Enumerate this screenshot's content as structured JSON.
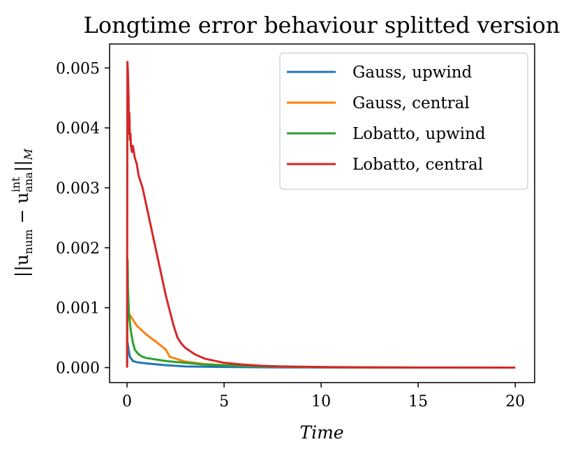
{
  "chart_data": {
    "type": "line",
    "title": "Longtime error behaviour splitted version",
    "xlabel": "Time",
    "ylabel_parts": {
      "bars_open": "||u",
      "num_sub": "num",
      "minus": " − u",
      "ana_sup": "int",
      "ana_sub": "ana",
      "bars_close": "||",
      "norm_sub": "M"
    },
    "xlim": [
      -0.9,
      21.0
    ],
    "ylim": [
      -0.00025,
      0.0054
    ],
    "xticks": [
      0,
      5,
      10,
      15,
      20
    ],
    "xtick_labels": [
      "0",
      "5",
      "10",
      "15",
      "20"
    ],
    "yticks": [
      0.0,
      0.001,
      0.002,
      0.003,
      0.004,
      0.005
    ],
    "ytick_labels": [
      "0.000",
      "0.001",
      "0.002",
      "0.003",
      "0.004",
      "0.005"
    ],
    "legend_position": "top-right",
    "series": [
      {
        "name": "Gauss, upwind",
        "color": "#1f77b4",
        "x": [
          0,
          0.03,
          0.08,
          0.15,
          0.3,
          0.5,
          1.0,
          2.0,
          3.0,
          5.0,
          8.0,
          12.0,
          20.0
        ],
        "y": [
          0.0,
          0.00042,
          0.0003,
          0.00018,
          0.00011,
          9e-05,
          7e-05,
          4e-05,
          2e-05,
          1e-05,
          3e-06,
          1e-06,
          0.0
        ]
      },
      {
        "name": "Gauss, central",
        "color": "#ff7f0e",
        "x": [
          0,
          0.03,
          0.06,
          0.1,
          0.2,
          0.5,
          1.0,
          1.5,
          2.0,
          2.2,
          3.0,
          4.0,
          5.0,
          7.0,
          10.0,
          15.0,
          20.0
        ],
        "y": [
          0.0,
          0.0014,
          0.00095,
          0.0009,
          0.00085,
          0.0007,
          0.00055,
          0.00043,
          0.0003,
          0.00018,
          0.0001,
          6e-05,
          4e-05,
          2e-05,
          5e-06,
          1e-06,
          0.0
        ]
      },
      {
        "name": "Lobatto, upwind",
        "color": "#2ca02c",
        "x": [
          0,
          0.03,
          0.05,
          0.1,
          0.2,
          0.3,
          0.4,
          0.6,
          0.8,
          1.0,
          2.0,
          3.0,
          4.0,
          5.0,
          7.0,
          10.0,
          15.0,
          20.0
        ],
        "y": [
          0.0,
          0.0018,
          0.0013,
          0.0009,
          0.0006,
          0.00042,
          0.0003,
          0.00022,
          0.00018,
          0.00016,
          0.00011,
          8e-05,
          5e-05,
          4e-05,
          2e-05,
          5e-06,
          1e-06,
          0.0
        ]
      },
      {
        "name": "Lobatto, central",
        "color": "#d62728",
        "x": [
          0,
          0.02,
          0.05,
          0.08,
          0.1,
          0.12,
          0.15,
          0.18,
          0.2,
          0.25,
          0.3,
          0.4,
          0.5,
          0.6,
          0.8,
          1.0,
          1.2,
          1.4,
          1.6,
          1.8,
          2.0,
          2.2,
          2.4,
          2.6,
          2.8,
          3.0,
          3.5,
          4.0,
          5.0,
          6.0,
          7.0,
          8.0,
          10.0,
          12.0,
          15.0,
          20.0
        ],
        "y": [
          0.0,
          0.0051,
          0.0049,
          0.0045,
          0.0039,
          0.00425,
          0.0038,
          0.0039,
          0.0037,
          0.0036,
          0.0037,
          0.0035,
          0.0034,
          0.0032,
          0.003,
          0.0027,
          0.0024,
          0.0021,
          0.0018,
          0.0015,
          0.0012,
          0.00095,
          0.0007,
          0.0005,
          0.0004,
          0.00033,
          0.00022,
          0.00015,
          8e-05,
          5e-05,
          3e-05,
          2e-05,
          1e-05,
          5e-06,
          2e-06,
          0.0
        ]
      }
    ]
  }
}
